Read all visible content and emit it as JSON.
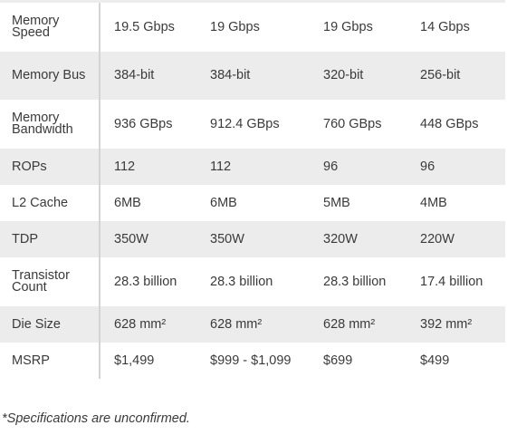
{
  "table": {
    "rows": [
      {
        "label": "Memory Speed",
        "values": [
          "19.5 Gbps",
          "19 Gbps",
          "19 Gbps",
          "14 Gbps"
        ]
      },
      {
        "label": "Memory Bus",
        "values": [
          "384-bit",
          "384-bit",
          "320-bit",
          "256-bit"
        ]
      },
      {
        "label": "Memory Bandwidth",
        "values": [
          "936 GBps",
          "912.4 GBps",
          "760 GBps",
          "448 GBps"
        ]
      },
      {
        "label": "ROPs",
        "values": [
          "112",
          "112",
          "96",
          "96"
        ]
      },
      {
        "label": "L2 Cache",
        "values": [
          "6MB",
          "6MB",
          "5MB",
          "4MB"
        ]
      },
      {
        "label": "TDP",
        "values": [
          "350W",
          "350W",
          "320W",
          "220W"
        ]
      },
      {
        "label": "Transistor Count",
        "values": [
          "28.3 billion",
          "28.3 billion",
          "28.3 billion",
          "17.4 billion"
        ]
      },
      {
        "label": "Die Size",
        "values": [
          "628 mm²",
          "628 mm²",
          "628 mm²",
          "392 mm²"
        ]
      },
      {
        "label": "MSRP",
        "values": [
          "$1,499",
          "$999 - $1,099",
          "$699",
          "$499"
        ]
      }
    ]
  },
  "footnote": "*Specifications are unconfirmed."
}
